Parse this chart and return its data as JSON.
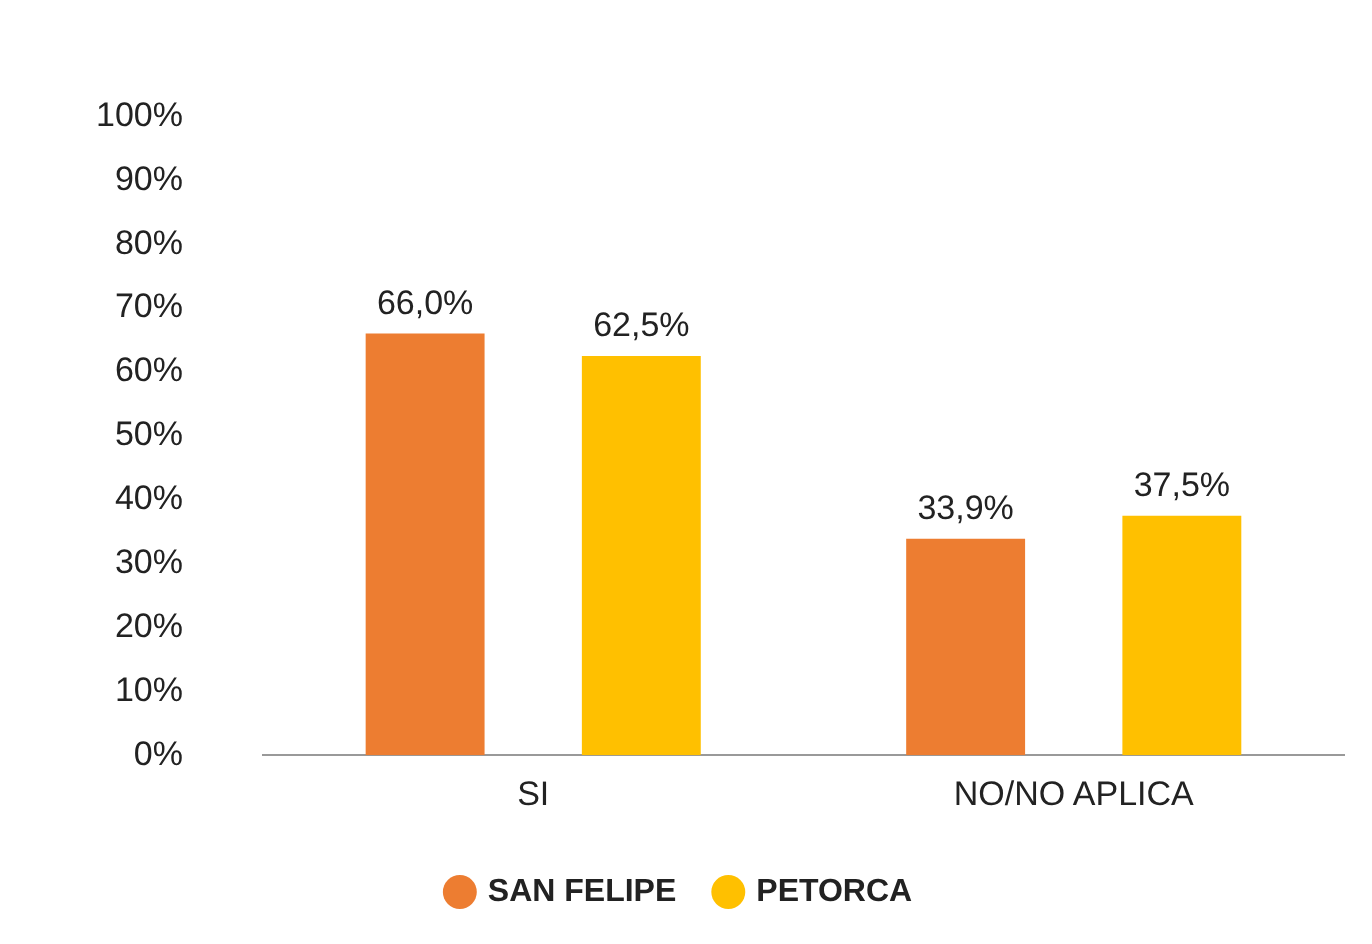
{
  "chart_data": {
    "type": "bar",
    "categories": [
      "SI",
      "NO/NO APLICA"
    ],
    "series": [
      {
        "name": "SAN FELIPE",
        "color": "#ed7d31",
        "values": [
          66.0,
          33.9
        ],
        "value_labels": [
          "66,0%",
          "33,9%"
        ]
      },
      {
        "name": "PETORCA",
        "color": "#ffc000",
        "values": [
          62.5,
          37.5
        ],
        "value_labels": [
          "62,5%",
          "37,5%"
        ]
      }
    ],
    "ylim": [
      0,
      100
    ],
    "yticks": [
      {
        "value": 0,
        "label": "0%"
      },
      {
        "value": 10,
        "label": "10%"
      },
      {
        "value": 20,
        "label": "20%"
      },
      {
        "value": 30,
        "label": "30%"
      },
      {
        "value": 40,
        "label": "40%"
      },
      {
        "value": 50,
        "label": "50%"
      },
      {
        "value": 60,
        "label": "60%"
      },
      {
        "value": 70,
        "label": "70%"
      },
      {
        "value": 80,
        "label": "80%"
      },
      {
        "value": 90,
        "label": "90%"
      },
      {
        "value": 100,
        "label": "100%"
      }
    ],
    "grid": false,
    "legend": "bottom"
  }
}
